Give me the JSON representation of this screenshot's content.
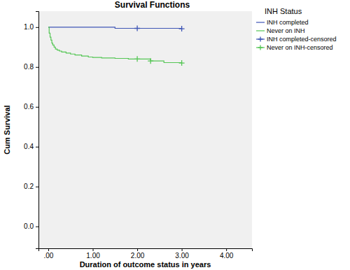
{
  "chart_data": {
    "type": "line",
    "title": "Survival Functions",
    "x_label": "Duration of outcome status in years",
    "y_label": "Cum Survival",
    "legend_title": "INH Status",
    "legend": "right",
    "xlim": [
      -0.22,
      4.58
    ],
    "ylim": [
      -0.11,
      1.08
    ],
    "xticks": [
      {
        "value": 0,
        "label": ".00"
      },
      {
        "value": 1,
        "label": "1.00"
      },
      {
        "value": 2,
        "label": "2.00"
      },
      {
        "value": 3,
        "label": "3.00"
      },
      {
        "value": 4,
        "label": "4.00"
      }
    ],
    "yticks": [
      {
        "value": 0,
        "label": "0.0"
      },
      {
        "value": 0.2,
        "label": "0.2"
      },
      {
        "value": 0.4,
        "label": "0.4"
      },
      {
        "value": 0.6,
        "label": "0.6"
      },
      {
        "value": 0.8,
        "label": "0.8"
      },
      {
        "value": 1,
        "label": "1.0"
      }
    ],
    "series": [
      {
        "name": "INH completed",
        "type": "step",
        "color": "#3e55b5",
        "x": [
          0,
          1.5,
          3.0
        ],
        "values": [
          1.0,
          0.994,
          0.992
        ]
      },
      {
        "name": "Never on INH",
        "type": "step",
        "color": "#55c655",
        "x": [
          0,
          0.02,
          0.04,
          0.06,
          0.08,
          0.1,
          0.13,
          0.16,
          0.2,
          0.25,
          0.3,
          0.4,
          0.5,
          0.6,
          0.75,
          0.9,
          1.0,
          1.2,
          1.5,
          1.8,
          2.3,
          2.6,
          3.0
        ],
        "values": [
          1.0,
          0.97,
          0.95,
          0.935,
          0.92,
          0.91,
          0.9,
          0.89,
          0.885,
          0.88,
          0.875,
          0.87,
          0.865,
          0.86,
          0.855,
          0.85,
          0.848,
          0.845,
          0.843,
          0.84,
          0.83,
          0.822,
          0.82
        ]
      },
      {
        "name": "INH completed-censored",
        "type": "scatter",
        "marker": "plus",
        "color": "#3e55b5",
        "x": [
          2.0,
          3.0
        ],
        "values": [
          0.994,
          0.992
        ]
      },
      {
        "name": "Never on INH-censored",
        "type": "scatter",
        "marker": "plus",
        "color": "#55c655",
        "x": [
          2.0,
          2.3,
          3.0
        ],
        "values": [
          0.84,
          0.83,
          0.82
        ]
      }
    ]
  }
}
